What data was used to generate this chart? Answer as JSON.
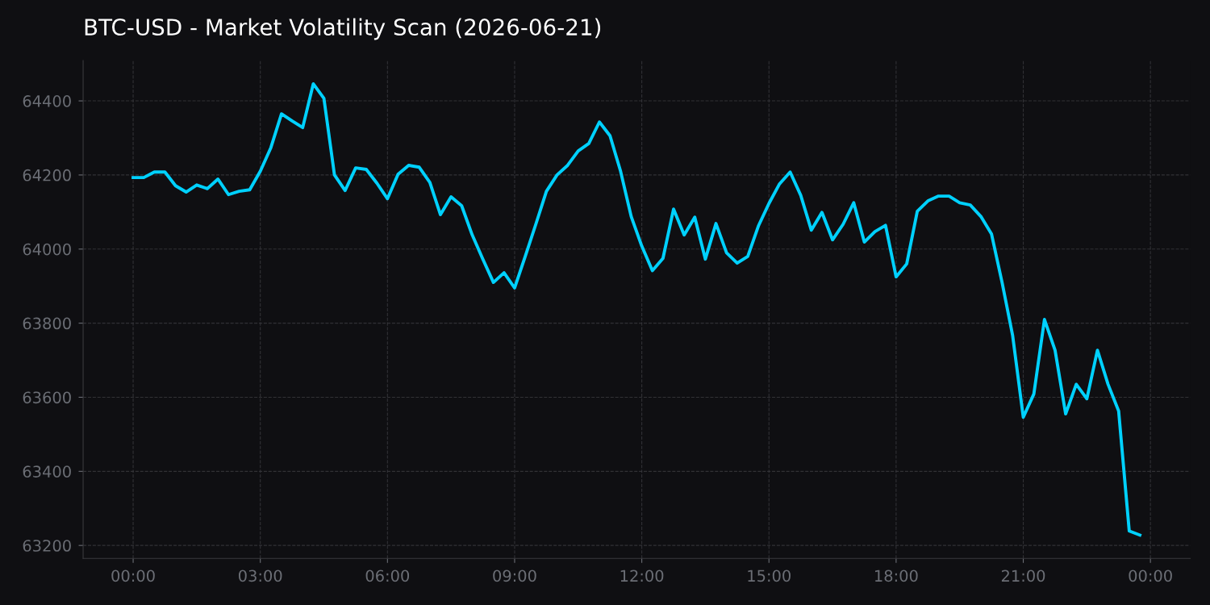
{
  "chart_data": {
    "type": "line",
    "title": "BTC-USD - Market Volatility Scan (2026-06-21)",
    "x": [
      0,
      0.25,
      0.5,
      0.75,
      1,
      1.25,
      1.5,
      1.75,
      2,
      2.25,
      2.5,
      2.75,
      3,
      3.25,
      3.5,
      3.75,
      4,
      4.25,
      4.5,
      4.75,
      5,
      5.25,
      5.5,
      5.75,
      6,
      6.25,
      6.5,
      6.75,
      7,
      7.25,
      7.5,
      7.75,
      8,
      8.25,
      8.5,
      8.75,
      9,
      9.25,
      9.5,
      9.75,
      10,
      10.25,
      10.5,
      10.75,
      11,
      11.25,
      11.5,
      11.75,
      12,
      12.25,
      12.5,
      12.75,
      13,
      13.25,
      13.5,
      13.75,
      14,
      14.25,
      14.5,
      14.75,
      15,
      15.25,
      15.5,
      15.75,
      16,
      16.25,
      16.5,
      16.75,
      17,
      17.25,
      17.5,
      17.75,
      18,
      18.25,
      18.5,
      18.75,
      19,
      19.25,
      19.5,
      19.75,
      20,
      20.25,
      20.5,
      20.75,
      21,
      21.25,
      21.5,
      21.75,
      22,
      22.25,
      22.5,
      22.75,
      23,
      23.25,
      23.5,
      23.75
    ],
    "series": [
      {
        "color": "#00d1ff",
        "values": [
          64193,
          64193,
          64208,
          64208,
          64171,
          64154,
          64173,
          64163,
          64189,
          64147,
          64156,
          64160,
          64210,
          64274,
          64365,
          64346,
          64328,
          64446,
          64407,
          64200,
          64158,
          64219,
          64215,
          64178,
          64136,
          64202,
          64226,
          64221,
          64180,
          64093,
          64141,
          64117,
          64038,
          63973,
          63910,
          63936,
          63895,
          63980,
          64067,
          64156,
          64200,
          64226,
          64265,
          64285,
          64343,
          64306,
          64210,
          64088,
          64008,
          63942,
          63975,
          64108,
          64038,
          64086,
          63973,
          64069,
          63990,
          63962,
          63980,
          64062,
          64123,
          64176,
          64208,
          64145,
          64051,
          64099,
          64025,
          64067,
          64125,
          64019,
          64047,
          64064,
          63925,
          63960,
          64102,
          64130,
          64143,
          64143,
          64125,
          64119,
          64088,
          64041,
          63910,
          63766,
          63546,
          63609,
          63810,
          63727,
          63555,
          63635,
          63596,
          63727,
          63635,
          63563,
          63239,
          63228
        ]
      }
    ],
    "xlim": [
      -1.18,
      24.94
    ],
    "ylim": [
      63165,
      64509
    ],
    "xticks": [
      {
        "value": 0,
        "label": "00:00"
      },
      {
        "value": 3,
        "label": "03:00"
      },
      {
        "value": 6,
        "label": "06:00"
      },
      {
        "value": 9,
        "label": "09:00"
      },
      {
        "value": 12,
        "label": "12:00"
      },
      {
        "value": 15,
        "label": "15:00"
      },
      {
        "value": 18,
        "label": "18:00"
      },
      {
        "value": 21,
        "label": "21:00"
      },
      {
        "value": 24,
        "label": "00:00"
      }
    ],
    "yticks": [
      63200,
      63400,
      63600,
      63800,
      64000,
      64200,
      64400
    ],
    "grid": true,
    "line_style": "solid",
    "marker": "none"
  }
}
